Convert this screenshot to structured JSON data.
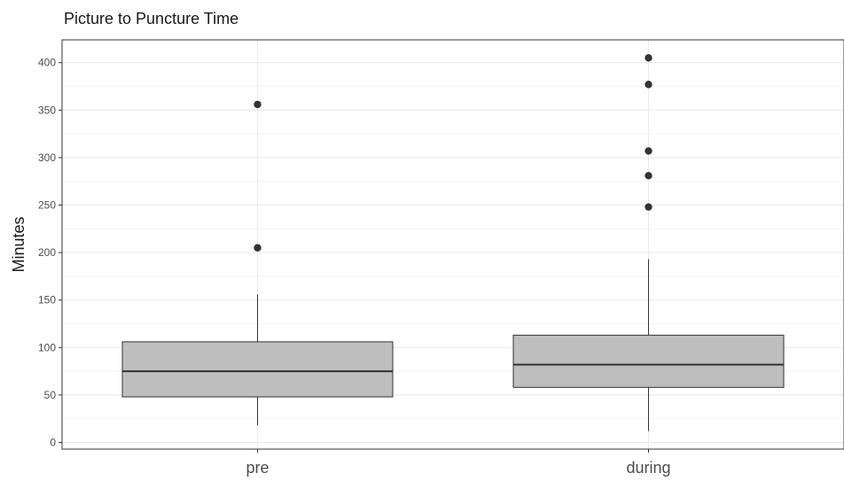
{
  "chart_data": {
    "type": "box",
    "title": "Picture to Puncture Time",
    "xlabel": "",
    "ylabel": "Minutes",
    "ylim": [
      -7,
      424
    ],
    "yticks": [
      0,
      50,
      100,
      150,
      200,
      250,
      300,
      350,
      400
    ],
    "grid": true,
    "legend": "none",
    "categories": [
      "pre",
      "during"
    ],
    "boxes": [
      {
        "category": "pre",
        "whisker_low": 18,
        "q1": 48,
        "median": 75,
        "q3": 106,
        "whisker_high": 156,
        "outliers": [
          205,
          356
        ]
      },
      {
        "category": "during",
        "whisker_low": 12,
        "q1": 58,
        "median": 82,
        "q3": 113,
        "whisker_high": 193,
        "outliers": [
          248,
          281,
          307,
          377,
          405
        ]
      }
    ],
    "colors": {
      "box_fill": "#bebebe",
      "box_stroke": "#333333",
      "outlier": "#333333",
      "grid_major": "#ebebeb",
      "grid_minor": "#f5f5f5",
      "panel_border": "#333333"
    }
  }
}
